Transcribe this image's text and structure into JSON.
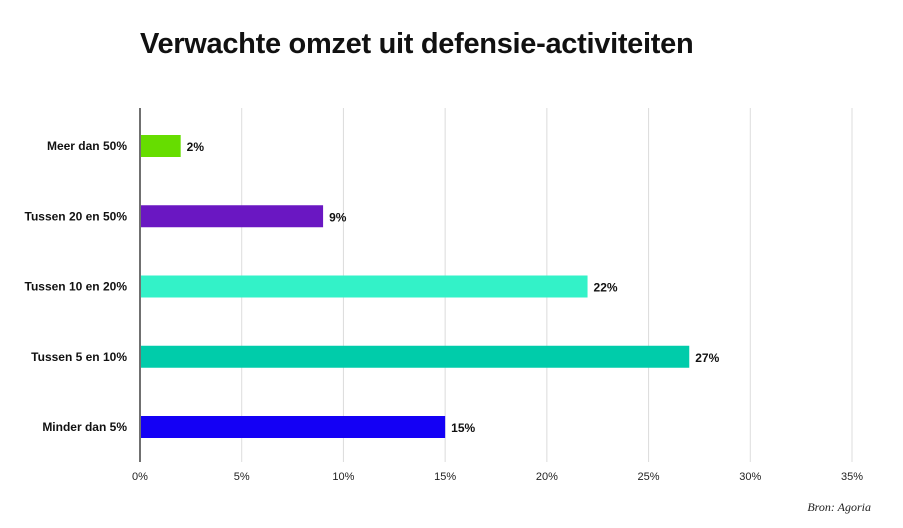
{
  "chart_data": {
    "type": "bar",
    "orientation": "horizontal",
    "title": "Verwachte omzet uit defensie-activiteiten",
    "categories": [
      "Meer dan 50%",
      "Tussen 20 en 50%",
      "Tussen 10 en 20%",
      "Tussen 5 en 10%",
      "Minder dan 5%"
    ],
    "values": [
      2,
      9,
      22,
      27,
      15
    ],
    "value_labels": [
      "2%",
      "9%",
      "22%",
      "27%",
      "15%"
    ],
    "colors": [
      "#66dd00",
      "#6a17c2",
      "#33f2c8",
      "#00ccaa",
      "#1400f5"
    ],
    "xlim": [
      0,
      35
    ],
    "xticks": [
      0,
      5,
      10,
      15,
      20,
      25,
      30,
      35
    ],
    "xtick_labels": [
      "0%",
      "5%",
      "10%",
      "15%",
      "20%",
      "25%",
      "30%",
      "35%"
    ],
    "grid": "vertical",
    "xlabel": "",
    "ylabel": ""
  },
  "source": "Bron: Agoria"
}
